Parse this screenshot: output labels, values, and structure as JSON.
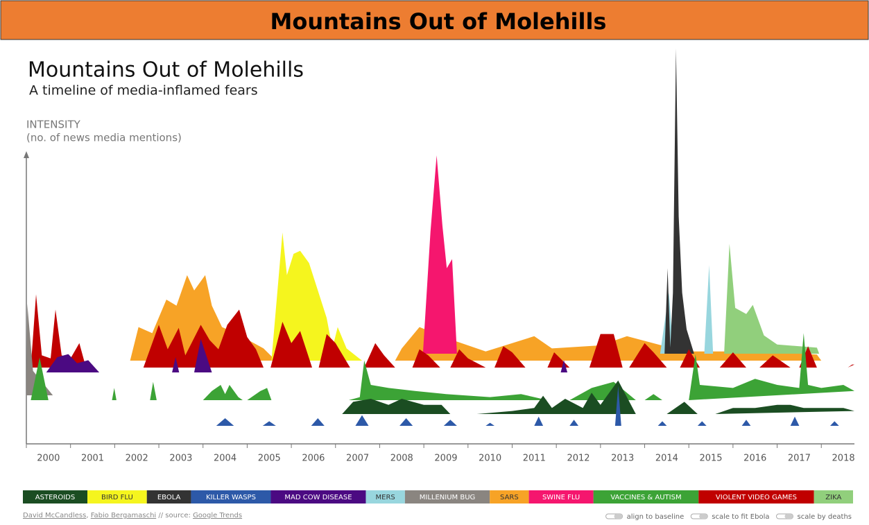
{
  "header": {
    "title": "Mountains Out of Molehills"
  },
  "chart_data": {
    "type": "area",
    "title": "Mountains Out of Molehills",
    "subtitle": "A timeline of media-inflamed fears",
    "ylabel": [
      "INTENSITY",
      "(no. of news media mentions)"
    ],
    "xlim": [
      2000,
      2018.75
    ],
    "xticks": [
      2000,
      2001,
      2002,
      2003,
      2004,
      2005,
      2006,
      2007,
      2008,
      2009,
      2010,
      2011,
      2012,
      2013,
      2014,
      2015,
      2016,
      2017,
      2018
    ],
    "ylim": [
      0,
      100
    ],
    "series": [
      {
        "name": "ASTEROIDS",
        "color": "#1b4d22",
        "x": [
          2007.15,
          2007.4,
          2007.8,
          2008.2,
          2008.5,
          2009.0,
          2009.4,
          2009.6,
          null,
          2010.2,
          2011.0,
          2011.5,
          2011.7,
          2011.9,
          2012.2,
          2012.6,
          2012.8,
          2013.0,
          2013.4,
          2013.8,
          null,
          2014.5,
          2014.9,
          2015.2,
          null,
          2015.6,
          2016.0,
          2016.5,
          2017.0,
          2017.3,
          2017.6,
          2018.0,
          2018.5,
          2018.75
        ],
        "values": [
          0,
          4,
          5,
          3,
          5,
          3,
          3,
          0,
          null,
          0,
          1,
          2,
          6,
          2,
          5,
          2,
          7,
          3,
          11,
          0,
          null,
          0,
          4,
          0,
          null,
          0,
          2,
          2,
          3,
          3,
          2,
          2,
          2,
          1
        ]
      },
      {
        "name": "BIRD FLU",
        "color": "#f5f51e",
        "x": [
          2005.55,
          2005.8,
          2005.9,
          2006.05,
          2006.2,
          2006.4,
          2006.6,
          2006.8,
          2006.93,
          2007.05,
          2007.25,
          2007.6
        ],
        "values": [
          0,
          42,
          28,
          35,
          36,
          32,
          23,
          14,
          4,
          11,
          4,
          0
        ]
      },
      {
        "name": "EBOLA",
        "color": "#333333",
        "x": [
          2014.45,
          2014.52,
          2014.58,
          2014.64,
          2014.71,
          2014.77,
          2014.85,
          2014.95,
          2015.12
        ],
        "values": [
          0,
          28,
          2,
          20,
          100,
          45,
          20,
          8,
          0
        ]
      },
      {
        "name": "KILLER WASPS",
        "color": "#2d59a8",
        "x": [
          2004.3,
          2004.5,
          2004.7,
          null,
          2005.35,
          2005.5,
          2005.65,
          null,
          2006.45,
          2006.6,
          2006.75,
          null,
          2007.45,
          2007.6,
          2007.75,
          null,
          2008.45,
          2008.6,
          2008.75,
          null,
          2009.45,
          2009.6,
          2009.75,
          null,
          2010.4,
          2010.5,
          2010.6,
          null,
          2011.5,
          2011.6,
          2011.7,
          null,
          2012.3,
          2012.4,
          2012.5,
          null,
          2013.33,
          2013.4,
          2013.47,
          null,
          2014.3,
          2014.4,
          2014.5,
          null,
          2015.2,
          2015.3,
          2015.4,
          null,
          2016.2,
          2016.3,
          2016.4,
          null,
          2017.3,
          2017.4,
          2017.5,
          null,
          2018.2,
          2018.3,
          2018.4
        ],
        "values": [
          0,
          2.5,
          0,
          null,
          0,
          1.5,
          0,
          null,
          0,
          2.5,
          0,
          null,
          0,
          3.5,
          0,
          null,
          0,
          2.5,
          0,
          null,
          0,
          2,
          0,
          null,
          0,
          1,
          0,
          null,
          0,
          3,
          0,
          null,
          0,
          2,
          0,
          null,
          0,
          13,
          0,
          null,
          0,
          1.5,
          0,
          null,
          0,
          1.5,
          0,
          null,
          0,
          2,
          0,
          null,
          0,
          3,
          0,
          null,
          0,
          1.5,
          0
        ]
      },
      {
        "name": "MAD COW DISEASE",
        "color": "#4b0a82",
        "x": [
          2000.45,
          2000.7,
          2000.95,
          2001.15,
          2001.4,
          2001.65,
          null,
          2003.3,
          2003.38,
          2003.46,
          null,
          2003.8,
          2003.95,
          2004.2,
          null,
          2012.1,
          2012.17,
          2012.25
        ],
        "values": [
          0,
          5,
          6,
          3,
          4,
          0,
          null,
          0,
          5,
          0,
          null,
          0,
          11,
          0,
          null,
          0,
          4,
          0
        ]
      },
      {
        "name": "MERS",
        "color": "#98d6de",
        "x": [
          2014.35,
          2014.55,
          2014.65,
          null,
          2015.35,
          2015.46,
          2015.55
        ],
        "values": [
          0,
          20,
          0,
          null,
          0,
          29,
          0
        ]
      },
      {
        "name": "MILLENIUM BUG",
        "color": "#8a8580",
        "x": [
          2000,
          2000.02,
          2000.15,
          2000.6
        ],
        "values": [
          0,
          30,
          8,
          0
        ]
      },
      {
        "name": "SARS",
        "color": "#f7a326",
        "x": [
          2002.35,
          2002.54,
          2002.85,
          2003.17,
          2003.4,
          2003.64,
          2003.8,
          2004.05,
          2004.2,
          2004.43,
          2004.74,
          2005.37,
          2005.65,
          null,
          2008.35,
          2008.5,
          2008.9,
          2009.6,
          2010.4,
          2011.5,
          2011.9,
          2013.0,
          2013.6,
          2014.9,
          2016.6,
          2017.9,
          2018.0
        ],
        "values": [
          0,
          11,
          9,
          20,
          18,
          28,
          23,
          28,
          18,
          11,
          9,
          4,
          0,
          null,
          0,
          4,
          11,
          7,
          3,
          8,
          4,
          5,
          8,
          3,
          3,
          2,
          0
        ]
      },
      {
        "name": "SWINE FLU",
        "color": "#f5166e",
        "x": [
          2008.98,
          2009.15,
          2009.29,
          2009.42,
          2009.52,
          2009.64,
          2009.75
        ],
        "values": [
          0,
          40,
          65,
          42,
          28,
          31,
          0
        ]
      },
      {
        "name": "VACCINES & AUTISM",
        "color": "#3ca336",
        "x": [
          2000.1,
          2000.3,
          2000.5,
          null,
          2001.94,
          2001.99,
          2002.04,
          null,
          2002.8,
          2002.87,
          2002.95,
          null,
          2004.0,
          2004.2,
          2004.4,
          2004.5,
          2004.6,
          2004.8,
          2004.9,
          null,
          2005.0,
          2005.3,
          2005.45,
          2005.55,
          null,
          2007.3,
          2007.55,
          2007.65,
          2007.8,
          2008.2,
          2008.8,
          2009.5,
          2010.5,
          2011.2,
          2011.8,
          null,
          2012.3,
          2012.8,
          2013.3,
          2013.8,
          null,
          2014.0,
          2014.2,
          2014.4,
          null,
          2015.0,
          2015.15,
          2015.25,
          2016.0,
          2016.5,
          2017.0,
          2017.5,
          2017.6,
          2017.7,
          2018.0,
          2018.5,
          2018.75
        ],
        "values": [
          0,
          14,
          0,
          null,
          0,
          4,
          0,
          null,
          0,
          6,
          0,
          null,
          0,
          3,
          5,
          2,
          5,
          1,
          0,
          null,
          0,
          3,
          4,
          0,
          null,
          0,
          1,
          13,
          5,
          4,
          3,
          2,
          1,
          2,
          0,
          null,
          0,
          4,
          6,
          0,
          null,
          0,
          2,
          0,
          null,
          0,
          15,
          5,
          4,
          7,
          5,
          4,
          22,
          5,
          4,
          5,
          3
        ]
      },
      {
        "name": "VIOLENT VIDEO GAMES",
        "color": "#c00000",
        "x": [
          2000.1,
          2000.22,
          2000.35,
          2000.55,
          2000.66,
          2000.8,
          2001.0,
          2001.2,
          2001.35,
          null,
          2002.65,
          2002.85,
          2003.0,
          2003.2,
          2003.45,
          2003.6,
          2003.95,
          2004.15,
          2004.35,
          2004.55,
          2004.82,
          2005.0,
          2005.2,
          2005.37,
          null,
          2005.53,
          2005.8,
          2006.0,
          2006.2,
          2006.47,
          null,
          2006.62,
          2006.8,
          2007.0,
          2007.33,
          null,
          2007.65,
          2007.9,
          2008.1,
          2008.35,
          null,
          2008.74,
          2008.9,
          2009.1,
          2009.37,
          null,
          2009.6,
          2009.8,
          2010.0,
          2010.4,
          null,
          2010.6,
          2010.8,
          2011.0,
          2011.3,
          null,
          2011.8,
          2011.95,
          2012.3,
          null,
          2012.75,
          2013.0,
          2013.3,
          2013.5,
          null,
          2013.65,
          2014.0,
          2014.2,
          2014.5,
          null,
          2014.8,
          2015.0,
          2015.25,
          null,
          2015.7,
          2016.0,
          2016.3,
          null,
          2016.6,
          2016.9,
          2017.3,
          null,
          2017.5,
          2017.7,
          2017.9,
          null,
          2018.6,
          2018.7,
          2018.75
        ],
        "values": [
          0,
          24,
          4,
          3,
          19,
          4,
          3,
          8,
          0,
          null,
          0,
          8,
          14,
          6,
          13,
          4,
          14,
          9,
          6,
          14,
          19,
          10,
          6,
          0,
          null,
          0,
          15,
          8,
          12,
          0,
          null,
          0,
          11,
          8,
          0,
          null,
          0,
          8,
          4,
          0,
          null,
          0,
          6,
          4,
          0,
          null,
          0,
          6,
          3,
          0,
          null,
          0,
          7,
          5,
          0,
          null,
          0,
          5,
          0,
          null,
          0,
          11,
          11,
          0,
          null,
          0,
          8,
          5,
          0,
          null,
          0,
          6,
          0,
          null,
          0,
          5,
          0,
          null,
          0,
          4,
          0,
          null,
          0,
          7,
          0,
          null,
          0,
          1,
          1
        ]
      },
      {
        "name": "ZIKA",
        "color": "#91cf7c",
        "x": [
          2015.8,
          2015.92,
          2016.05,
          2016.3,
          2016.45,
          2016.7,
          2017.0,
          2017.9,
          2017.95
        ],
        "values": [
          0,
          36,
          15,
          13,
          16,
          6,
          3,
          2,
          0
        ]
      }
    ]
  },
  "footer": {
    "credits": [
      "David McCandless",
      ", ",
      "Fabio Bergamaschi",
      " // source: ",
      "Google Trends"
    ]
  },
  "controls": [
    "align to baseline",
    "scale to fit Ebola",
    "scale by deaths"
  ]
}
